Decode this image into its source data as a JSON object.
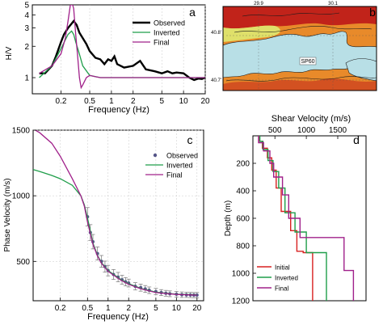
{
  "chart_data": [
    {
      "panel": "a",
      "type": "line",
      "xlabel": "Frequency (Hz)",
      "ylabel": "H/V",
      "xscale": "log",
      "yscale": "log",
      "xlim": [
        0.08,
        20
      ],
      "ylim": [
        0.7,
        5
      ],
      "xticks": [
        0.2,
        0.5,
        1,
        2,
        5,
        10,
        20
      ],
      "xtick_labels": [
        "0.2",
        "0.5",
        "1",
        "2",
        "5",
        "10",
        "20"
      ],
      "yticks": [
        1,
        2,
        3,
        4,
        5
      ],
      "ytick_labels": [
        "1",
        "2",
        "3",
        "4",
        "5"
      ],
      "grid": "x",
      "legend": "top-right",
      "series": [
        {
          "name": "Observed",
          "color": "#000000",
          "x": [
            0.1,
            0.12,
            0.15,
            0.17,
            0.2,
            0.22,
            0.25,
            0.28,
            0.3,
            0.33,
            0.36,
            0.4,
            0.45,
            0.5,
            0.6,
            0.7,
            0.8,
            0.9,
            1,
            1.1,
            1.2,
            1.5,
            2,
            2.5,
            3,
            4,
            5,
            6,
            7,
            8,
            10,
            12,
            14,
            16,
            18,
            20
          ],
          "y": [
            1.1,
            1.1,
            1.3,
            1.6,
            2.2,
            2.6,
            3.0,
            3.3,
            3.5,
            3.2,
            2.7,
            2.4,
            2.1,
            1.8,
            1.55,
            1.5,
            1.35,
            1.5,
            1.45,
            1.6,
            1.35,
            1.25,
            1.3,
            1.45,
            1.2,
            1.15,
            1.1,
            1.15,
            1.1,
            1.12,
            1.1,
            1.0,
            0.95,
            0.98,
            0.97,
            1.0
          ]
        },
        {
          "name": "Inverted",
          "color": "#1f9e4a",
          "x": [
            0.1,
            0.15,
            0.2,
            0.25,
            0.28,
            0.3,
            0.32,
            0.35,
            0.4,
            0.5,
            0.7,
            1,
            2,
            5,
            10,
            20
          ],
          "y": [
            1.0,
            1.3,
            1.9,
            2.6,
            2.8,
            2.6,
            2.2,
            1.8,
            1.3,
            1.05,
            1.0,
            1.0,
            1.0,
            1.0,
            1.0,
            1.0
          ]
        },
        {
          "name": "Final",
          "color": "#a0208a",
          "x": [
            0.1,
            0.15,
            0.2,
            0.23,
            0.25,
            0.27,
            0.29,
            0.3,
            0.32,
            0.34,
            0.36,
            0.38,
            0.4,
            0.45,
            0.5,
            0.6,
            0.7,
            1,
            2,
            5,
            10,
            20
          ],
          "y": [
            1.1,
            1.3,
            1.7,
            2.4,
            3.5,
            5.0,
            5.0,
            4.6,
            2.6,
            1.6,
            1.0,
            0.8,
            0.85,
            1.0,
            1.05,
            1.02,
            1.0,
            1.0,
            1.0,
            1.0,
            1.0,
            1.0
          ]
        }
      ]
    },
    {
      "panel": "b",
      "type": "map",
      "top_labels": [
        "29.9",
        "30.1"
      ],
      "left_labels": [
        "40.8'",
        "40.7'"
      ],
      "site_label": "SP60",
      "colors": {
        "water": "#b8dfe6",
        "low": "#dfe06a",
        "mid": "#e88a2a",
        "high": "#c1231a"
      }
    },
    {
      "panel": "c",
      "type": "line",
      "xlabel": "Frequency (Hz)",
      "ylabel": "Phase Velocity (m/s)",
      "xscale": "log",
      "xlim": [
        0.08,
        25
      ],
      "ylim": [
        200,
        1500
      ],
      "xticks": [
        0.2,
        0.5,
        1,
        2,
        5,
        10,
        20
      ],
      "xtick_labels": [
        "0.2",
        "0.5",
        "1",
        "2",
        "5",
        "10",
        "20"
      ],
      "yticks": [
        500,
        1000,
        1500
      ],
      "ytick_labels": [
        "500",
        "1000",
        "1500"
      ],
      "grid": "both",
      "legend": "right",
      "series": [
        {
          "name": "Observed",
          "color": "#555588",
          "style": "points-with-errorbars",
          "x": [
            0.5,
            0.55,
            0.6,
            0.7,
            0.8,
            0.9,
            1.0,
            1.2,
            1.4,
            1.6,
            1.8,
            2,
            2.5,
            3,
            3.5,
            4,
            5,
            6,
            7,
            8,
            10,
            12,
            14,
            16,
            18,
            20
          ],
          "y": [
            840,
            720,
            650,
            560,
            500,
            460,
            430,
            400,
            380,
            360,
            345,
            335,
            310,
            300,
            290,
            280,
            270,
            262,
            257,
            253,
            250,
            246,
            245,
            244,
            243,
            243
          ],
          "err": [
            70,
            60,
            55,
            50,
            45,
            42,
            40,
            38,
            36,
            34,
            32,
            30,
            28,
            27,
            26,
            25,
            24,
            23,
            22,
            22,
            21,
            21,
            20,
            20,
            20,
            20
          ]
        },
        {
          "name": "Inverted",
          "color": "#1f9e4a",
          "x": [
            0.08,
            0.1,
            0.15,
            0.2,
            0.3,
            0.4,
            0.45,
            0.5,
            0.6,
            0.7,
            0.8,
            1,
            1.5,
            2,
            3,
            5,
            10,
            20
          ],
          "y": [
            1200,
            1185,
            1155,
            1130,
            1080,
            1000,
            930,
            830,
            640,
            545,
            490,
            430,
            365,
            330,
            295,
            265,
            250,
            245
          ]
        },
        {
          "name": "Final",
          "color": "#a0208a",
          "x": [
            0.08,
            0.1,
            0.15,
            0.2,
            0.3,
            0.4,
            0.45,
            0.5,
            0.6,
            0.7,
            0.8,
            1,
            1.5,
            2,
            3,
            5,
            10,
            20
          ],
          "y": [
            1510,
            1480,
            1400,
            1300,
            1130,
            1000,
            920,
            800,
            630,
            540,
            485,
            425,
            360,
            325,
            292,
            262,
            248,
            243
          ]
        }
      ]
    },
    {
      "panel": "d",
      "type": "line",
      "title": "Shear Velocity (m/s)",
      "ylabel": "Depth (m)",
      "xlim": [
        150,
        1950
      ],
      "ylim": [
        1200,
        0
      ],
      "xticks": [
        500,
        1000,
        1500
      ],
      "xtick_labels": [
        "500",
        "1000",
        "1500"
      ],
      "yticks": [
        200,
        400,
        600,
        800,
        1000,
        1200
      ],
      "ytick_labels": [
        "200",
        "400",
        "600",
        "800",
        "1000",
        "1200"
      ],
      "grid": "none",
      "legend": "bottom-left",
      "series": [
        {
          "name": "Initial",
          "color": "#d82020",
          "x": [
            250,
            250,
            300,
            300,
            380,
            380,
            450,
            450,
            520,
            520,
            600,
            600,
            750,
            750,
            850,
            850,
            950,
            950,
            1100,
            1100
          ],
          "y": [
            0,
            40,
            40,
            90,
            90,
            160,
            160,
            250,
            250,
            380,
            380,
            550,
            550,
            690,
            690,
            840,
            840,
            850,
            850,
            1200
          ]
        },
        {
          "name": "Inverted",
          "color": "#1f9e4a",
          "x": [
            260,
            260,
            310,
            310,
            390,
            390,
            470,
            470,
            560,
            560,
            660,
            660,
            820,
            820,
            1000,
            1000,
            1320,
            1320
          ],
          "y": [
            0,
            40,
            40,
            100,
            100,
            180,
            180,
            260,
            260,
            380,
            380,
            560,
            560,
            700,
            700,
            850,
            850,
            1200
          ]
        },
        {
          "name": "Final",
          "color": "#a0208a",
          "x": [
            240,
            240,
            320,
            320,
            420,
            420,
            480,
            480,
            620,
            620,
            720,
            720,
            900,
            900,
            1600,
            1600,
            1750,
            1750
          ],
          "y": [
            0,
            50,
            50,
            110,
            110,
            200,
            200,
            300,
            300,
            430,
            430,
            600,
            600,
            740,
            740,
            980,
            980,
            1200
          ]
        }
      ]
    }
  ],
  "panel_letters": {
    "a": "a",
    "b": "b",
    "c": "c",
    "d": "d"
  }
}
